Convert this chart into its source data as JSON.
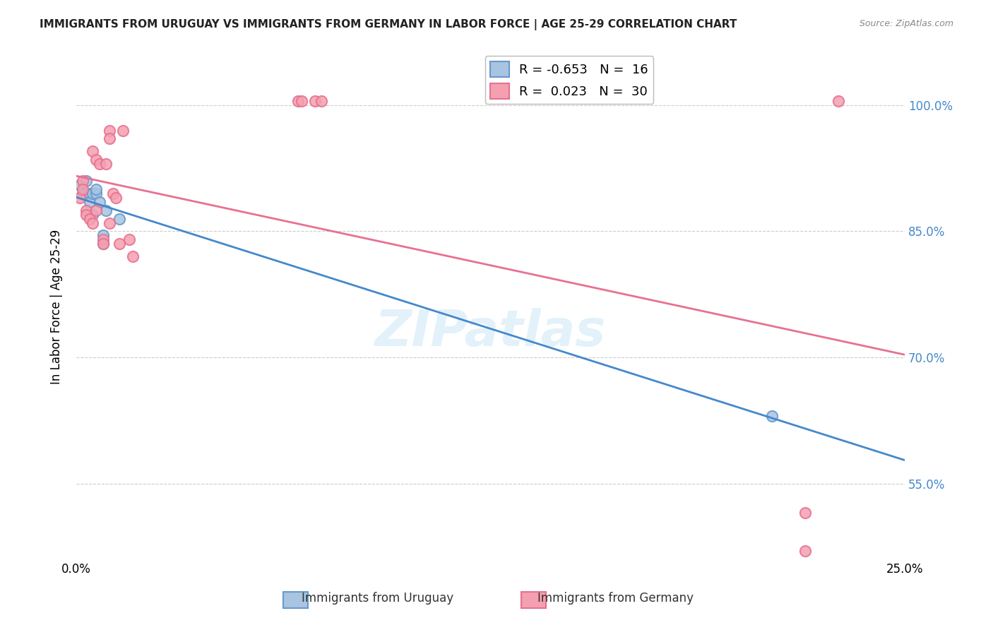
{
  "title": "IMMIGRANTS FROM URUGUAY VS IMMIGRANTS FROM GERMANY IN LABOR FORCE | AGE 25-29 CORRELATION CHART",
  "source": "Source: ZipAtlas.com",
  "xlabel": "",
  "ylabel": "In Labor Force | Age 25-29",
  "xlim": [
    0.0,
    0.25
  ],
  "ylim": [
    0.46,
    1.06
  ],
  "xticks": [
    0.0,
    0.05,
    0.1,
    0.15,
    0.2,
    0.25
  ],
  "yticks": [
    0.55,
    0.7,
    0.85,
    1.0
  ],
  "ytick_labels": [
    "55.0%",
    "70.0%",
    "85.0%",
    "100.0%"
  ],
  "xtick_labels": [
    "0.0%",
    "",
    "",
    "",
    "",
    "25.0%"
  ],
  "uruguay_x": [
    0.001,
    0.002,
    0.003,
    0.003,
    0.004,
    0.004,
    0.005,
    0.005,
    0.006,
    0.006,
    0.007,
    0.008,
    0.008,
    0.009,
    0.013,
    0.21
  ],
  "uruguay_y": [
    0.905,
    0.895,
    0.91,
    0.895,
    0.895,
    0.885,
    0.895,
    0.87,
    0.895,
    0.9,
    0.885,
    0.845,
    0.835,
    0.875,
    0.865,
    0.63
  ],
  "germany_x": [
    0.001,
    0.002,
    0.002,
    0.003,
    0.003,
    0.004,
    0.005,
    0.005,
    0.006,
    0.006,
    0.007,
    0.008,
    0.008,
    0.009,
    0.01,
    0.01,
    0.01,
    0.011,
    0.012,
    0.013,
    0.014,
    0.016,
    0.017,
    0.067,
    0.068,
    0.072,
    0.074,
    0.22,
    0.22,
    0.23
  ],
  "germany_y": [
    0.89,
    0.91,
    0.9,
    0.875,
    0.87,
    0.865,
    0.86,
    0.945,
    0.935,
    0.875,
    0.93,
    0.84,
    0.835,
    0.93,
    0.86,
    0.97,
    0.96,
    0.895,
    0.89,
    0.835,
    0.97,
    0.84,
    0.82,
    1.005,
    1.005,
    1.005,
    1.005,
    0.515,
    0.47,
    1.005
  ],
  "uruguay_color": "#a8c4e0",
  "germany_color": "#f4a0b0",
  "uruguay_edge_color": "#6699cc",
  "germany_edge_color": "#e87090",
  "trendline_uruguay_color": "#4488cc",
  "trendline_germany_color": "#e87090",
  "R_uruguay": -0.653,
  "N_uruguay": 16,
  "R_germany": 0.023,
  "N_germany": 30,
  "marker_size": 120,
  "watermark": "ZIPatlas",
  "background_color": "#ffffff",
  "grid_color": "#cccccc"
}
